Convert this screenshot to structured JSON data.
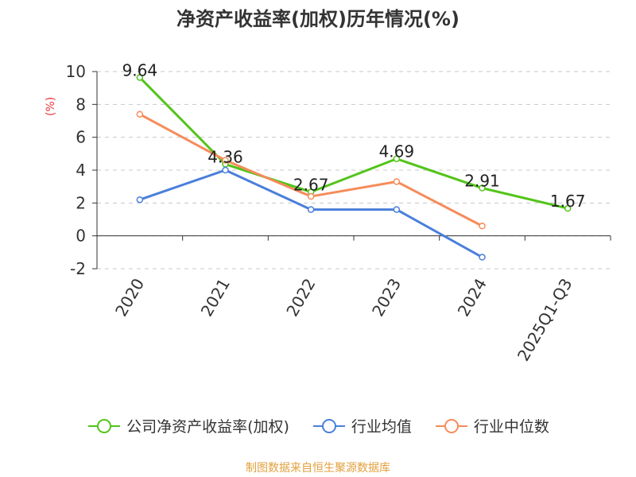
{
  "title": "净资产收益率(加权)历年情况(%)",
  "source": "制图数据来自恒生聚源数据库",
  "chart_data": {
    "type": "line",
    "title": "净资产收益率(加权)历年情况(%)",
    "ylabel": "(%)",
    "xlabel": "",
    "categories": [
      "2020",
      "2021",
      "2022",
      "2023",
      "2024",
      "2025Q1-Q3"
    ],
    "ylim": [
      -2,
      10
    ],
    "yticks": [
      -2,
      0,
      2,
      4,
      6,
      8,
      10
    ],
    "grid": true,
    "legend_position": "bottom",
    "series": [
      {
        "name": "公司净资产收益率(加权)",
        "color": "#52c41a",
        "values": [
          9.64,
          4.36,
          2.67,
          4.69,
          2.91,
          1.67
        ],
        "labels": [
          "9.64",
          "4.36",
          "2.67",
          "4.69",
          "2.91",
          "1.67"
        ]
      },
      {
        "name": "行业均值",
        "color": "#4a7fdb",
        "values": [
          2.2,
          4.0,
          1.6,
          1.6,
          -1.3,
          null
        ]
      },
      {
        "name": "行业中位数",
        "color": "#f58c5a",
        "values": [
          7.4,
          4.6,
          2.4,
          3.3,
          0.6,
          null
        ]
      }
    ]
  }
}
